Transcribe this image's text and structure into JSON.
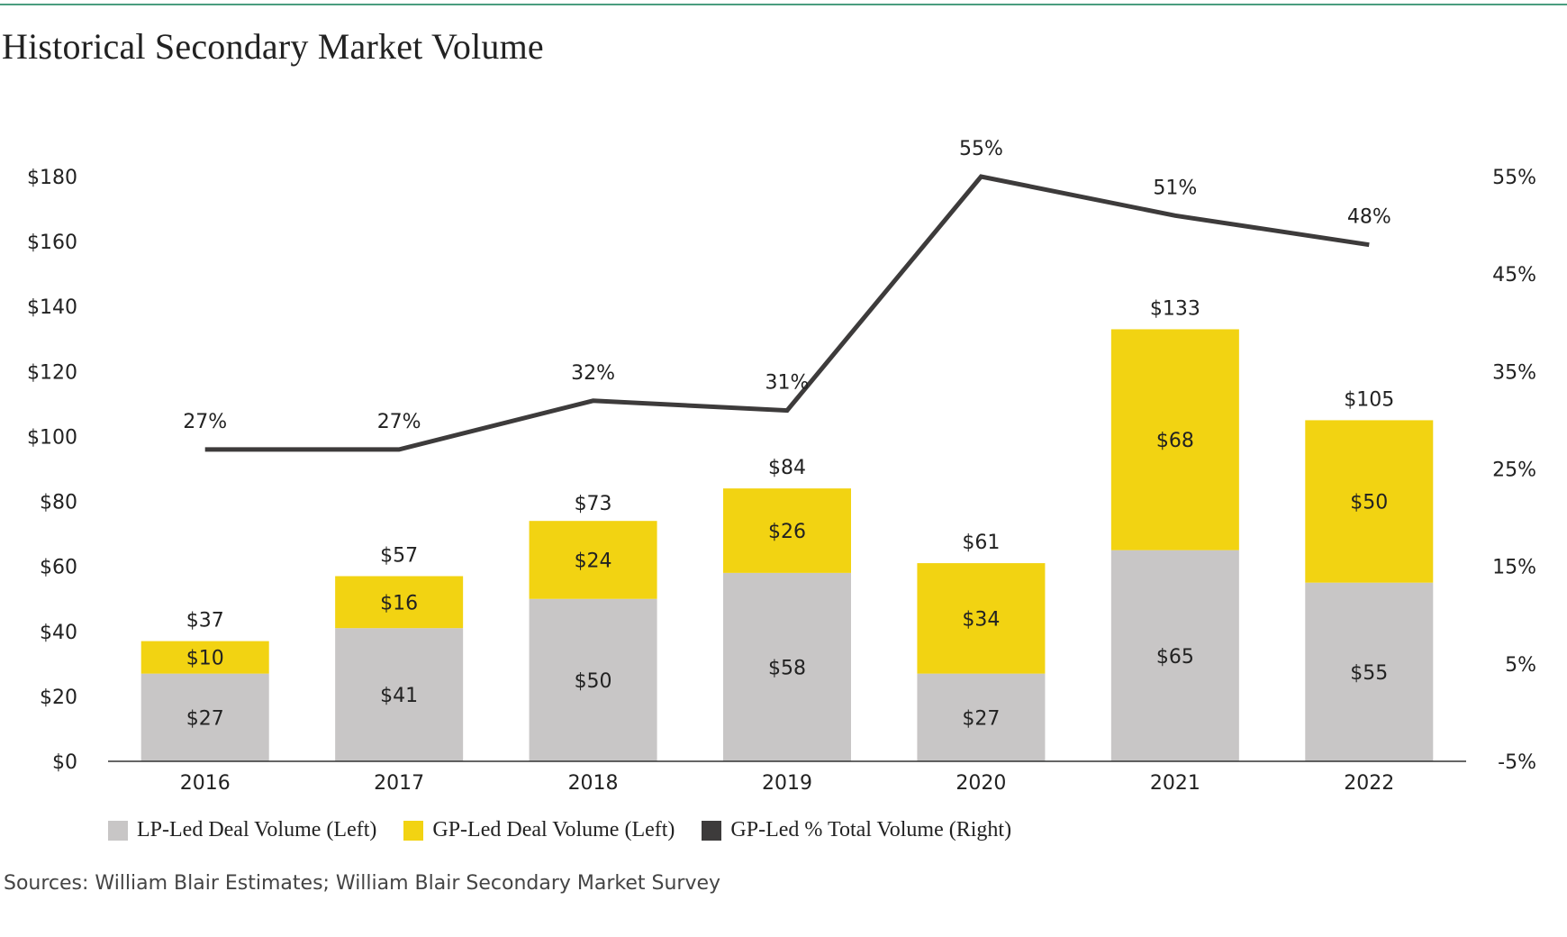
{
  "title": "Historical Secondary Market Volume",
  "source_note": "Sources: William Blair Estimates; William Blair Secondary Market Survey",
  "colors": {
    "lp": "#c8c6c6",
    "gp": "#f2d312",
    "line": "#3d3b3b"
  },
  "legend": [
    {
      "label": "LP-Led Deal Volume (Left)",
      "color": "#c8c6c6"
    },
    {
      "label": "GP-Led Deal Volume (Left)",
      "color": "#f2d312"
    },
    {
      "label": "GP-Led % Total Volume (Right)",
      "color": "#3d3b3b"
    }
  ],
  "chart_data": {
    "type": "bar",
    "stacked": true,
    "title": "Historical Secondary Market Volume",
    "categories": [
      "2016",
      "2017",
      "2018",
      "2019",
      "2020",
      "2021",
      "2022"
    ],
    "series": [
      {
        "name": "LP-Led Deal Volume (Left)",
        "axis": "left",
        "values": [
          27,
          41,
          50,
          58,
          27,
          65,
          55
        ],
        "labels": [
          "$27",
          "$41",
          "$50",
          "$58",
          "$27",
          "$65",
          "$55"
        ]
      },
      {
        "name": "GP-Led Deal Volume (Left)",
        "axis": "left",
        "values": [
          10,
          16,
          24,
          26,
          34,
          68,
          50
        ],
        "labels": [
          "$10",
          "$16",
          "$24",
          "$26",
          "$34",
          "$68",
          "$50"
        ]
      },
      {
        "name": "GP-Led % Total Volume (Right)",
        "axis": "right",
        "type": "line",
        "values": [
          27,
          27,
          32,
          31,
          55,
          51,
          48
        ],
        "labels": [
          "27%",
          "27%",
          "32%",
          "31%",
          "55%",
          "51%",
          "48%"
        ]
      }
    ],
    "totals": [
      37,
      57,
      73,
      84,
      61,
      133,
      105
    ],
    "total_labels": [
      "$37",
      "$57",
      "$73",
      "$84",
      "$61",
      "$133",
      "$105"
    ],
    "left_axis": {
      "min": 0,
      "max": 180,
      "ticks": [
        0,
        20,
        40,
        60,
        80,
        100,
        120,
        140,
        160,
        180
      ],
      "tick_labels": [
        "$0",
        "$20",
        "$40",
        "$60",
        "$80",
        "$100",
        "$120",
        "$140",
        "$160",
        "$180"
      ]
    },
    "right_axis": {
      "min": -5,
      "max": 55,
      "ticks": [
        -5,
        5,
        15,
        25,
        35,
        45,
        55
      ],
      "tick_labels": [
        "-5%",
        "5%",
        "15%",
        "25%",
        "35%",
        "45%",
        "55%"
      ]
    },
    "grid": false,
    "legend_position": "bottom"
  }
}
